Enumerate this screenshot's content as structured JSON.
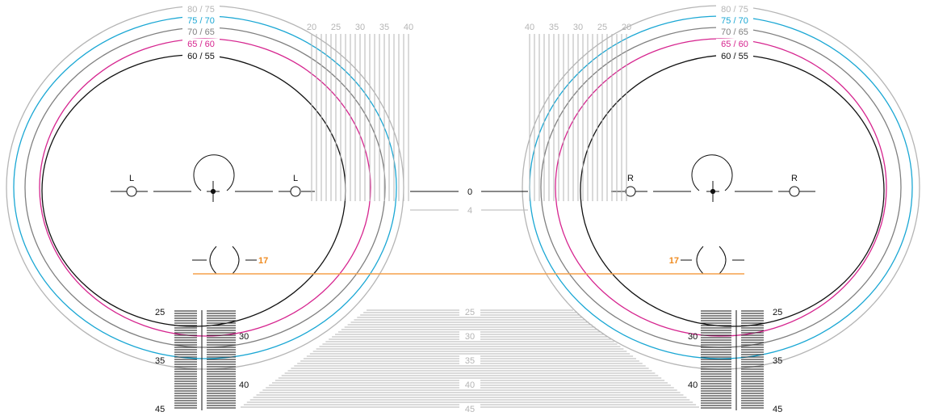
{
  "colors": {
    "black": "#111111",
    "gray": "#808080",
    "light_gray": "#b5b5b5",
    "cyan": "#1aa7d4",
    "magenta": "#d6258f",
    "orange": "#f5a04a",
    "orange_text": "#ef8a1e"
  },
  "rings": [
    {
      "label": "80 / 75",
      "color": "light_gray"
    },
    {
      "label": "75 / 70",
      "color": "cyan"
    },
    {
      "label": "70 / 65",
      "color": "gray"
    },
    {
      "label": "65 / 60",
      "color": "magenta"
    },
    {
      "label": "60 / 55",
      "color": "black"
    }
  ],
  "markers": {
    "left": "L",
    "right": "R"
  },
  "center": {
    "zero": "0",
    "four": "4"
  },
  "offset_label": "17",
  "vertical_scale_labels": [
    "20",
    "25",
    "30",
    "35",
    "40"
  ],
  "vertical_scale_labels_right": [
    "40",
    "35",
    "30",
    "25",
    "20"
  ],
  "bottom_scale_labels": [
    "25",
    "30",
    "35",
    "40",
    "45"
  ],
  "side_scale": {
    "outer": [
      "25",
      "35",
      "45"
    ],
    "inner": [
      "30",
      "40"
    ]
  }
}
